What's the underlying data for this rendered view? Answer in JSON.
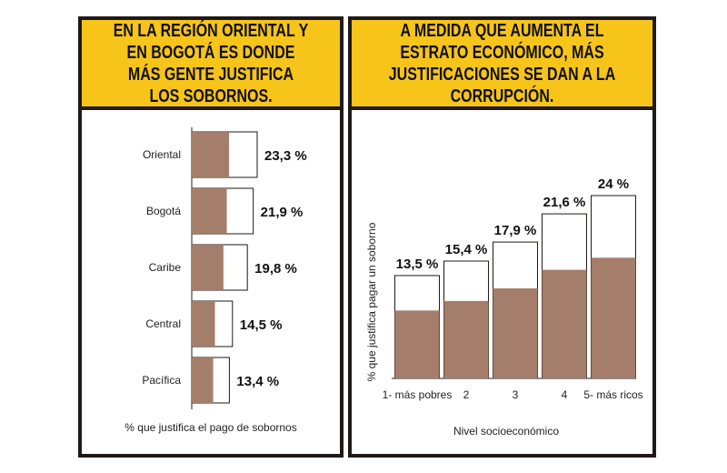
{
  "chart_data": [
    {
      "type": "bar",
      "orientation": "horizontal",
      "title": "EN LA REGIÓN ORIENTAL Y EN BOGOTÁ ES DONDE MÁS GENTE JUSTIFICA LOS SOBORNOS.",
      "categories": [
        "Oriental",
        "Bogotá",
        "Caribe",
        "Central",
        "Pacífica"
      ],
      "values": [
        23.3,
        21.9,
        19.8,
        14.5,
        13.4
      ],
      "value_labels": [
        "23,3 %",
        "21,9 %",
        "19,8 %",
        "14,5 %",
        "13,4 %"
      ],
      "xlabel": "% que justifica el pago de sobornos",
      "ylabel": "",
      "grid": false,
      "colors": {
        "fill": "#a57d6b",
        "outline": "#1f1a17"
      }
    },
    {
      "type": "bar",
      "orientation": "vertical",
      "title": "A MEDIDA QUE AUMENTA EL ESTRATO ECONÓMICO, MÁS JUSTIFICACIONES SE DAN A LA CORRUPCIÓN.",
      "categories": [
        "1- más pobres",
        "2",
        "3",
        "4",
        "5- más ricos"
      ],
      "values": [
        13.5,
        15.4,
        17.9,
        21.6,
        24
      ],
      "value_labels": [
        "13,5 %",
        "15,4 %",
        "17,9 %",
        "21,6 %",
        "24 %"
      ],
      "xlabel": "Nivel socioeconómico",
      "ylabel": "% que justifica pagar un soborno",
      "grid": false,
      "colors": {
        "fill": "#a57d6b",
        "outline": "#1f1a17"
      }
    }
  ],
  "colors": {
    "header": "#f7c51a",
    "border": "#1f1a17"
  }
}
